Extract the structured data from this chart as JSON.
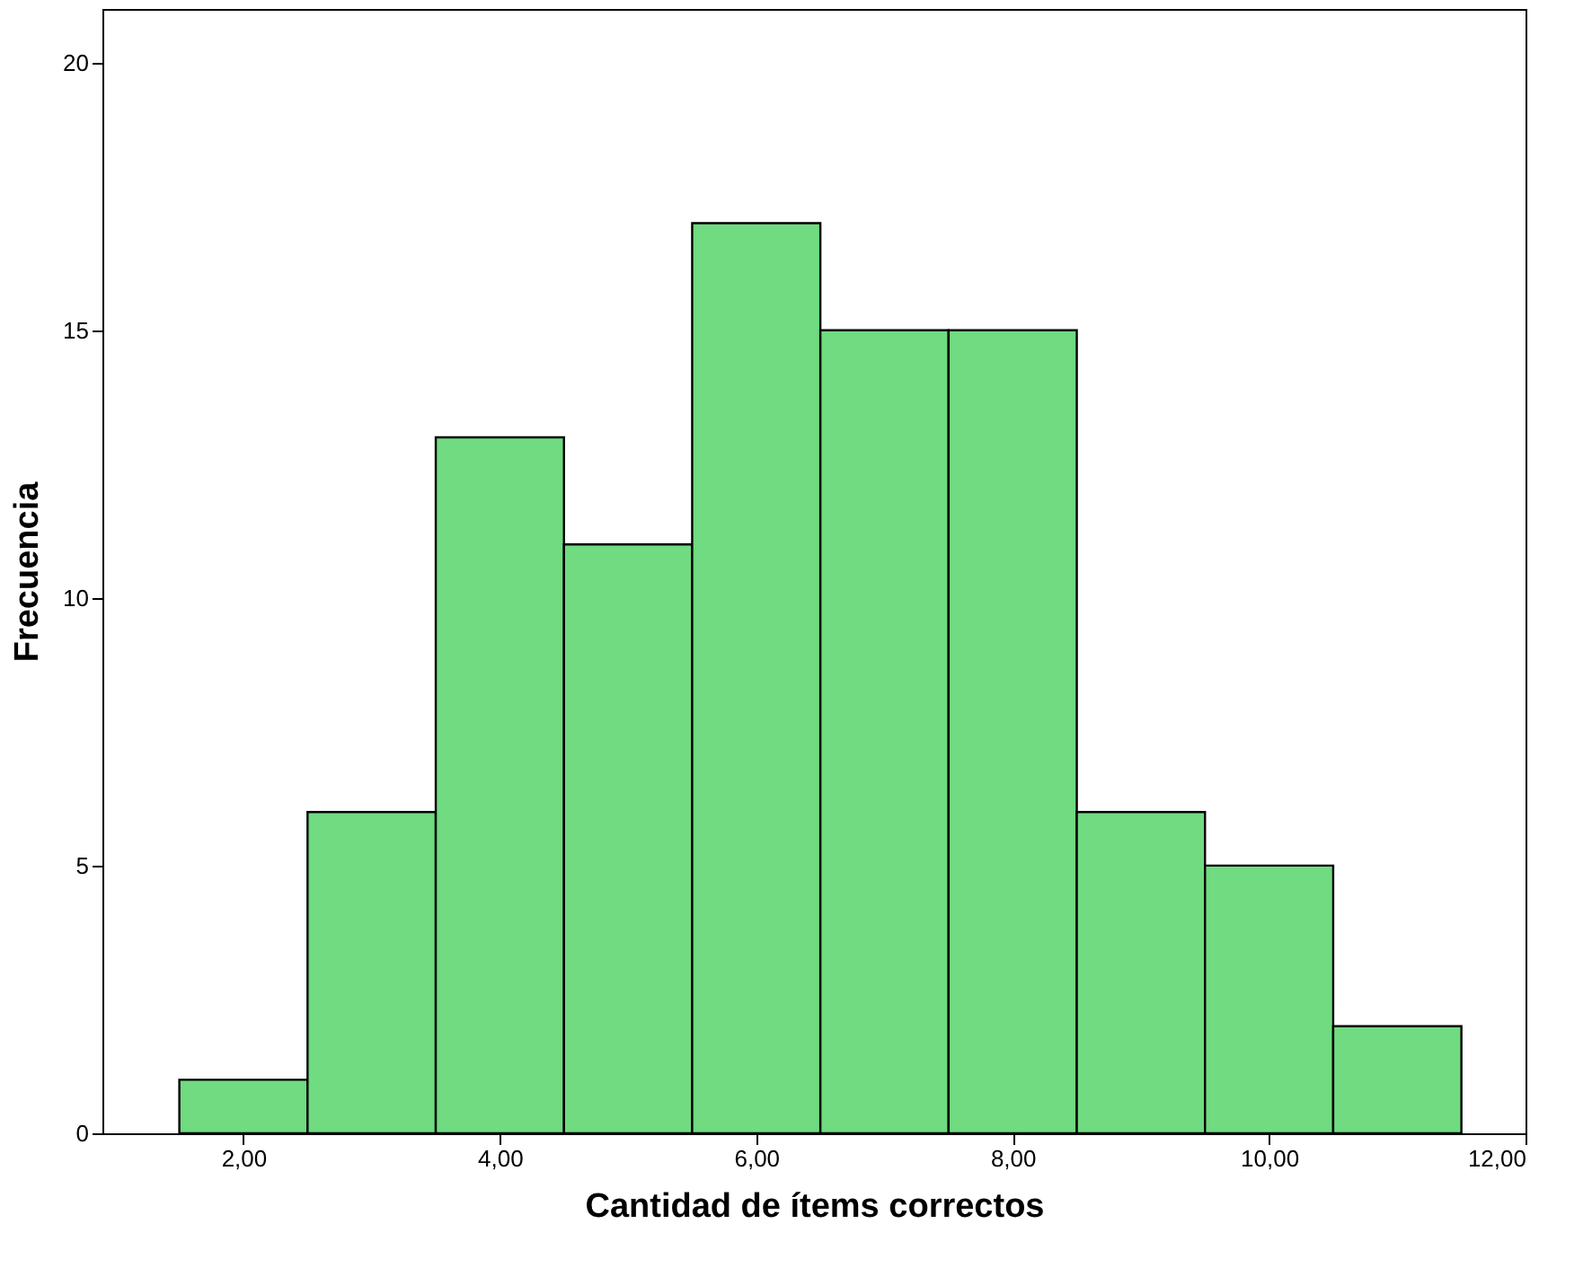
{
  "chart_data": {
    "type": "histogram",
    "xlabel": "Cantidad de ítems correctos",
    "ylabel": "Frecuencia",
    "bins": [
      1.5,
      2.5,
      3.5,
      4.5,
      5.5,
      6.5,
      7.5,
      8.5,
      9.5,
      10.5,
      11.5
    ],
    "values": [
      1,
      6,
      13,
      11,
      17,
      15,
      15,
      6,
      5,
      2
    ],
    "color": "#70db80",
    "xlim": [
      0.9,
      12.0
    ],
    "xticks": [
      {
        "value": 2,
        "label": "2,00"
      },
      {
        "value": 4,
        "label": "4,00"
      },
      {
        "value": 6,
        "label": "6,00"
      },
      {
        "value": 8,
        "label": "8,00"
      },
      {
        "value": 10,
        "label": "10,00"
      },
      {
        "value": 12,
        "label": "12,00"
      }
    ],
    "ylim": [
      0,
      21
    ],
    "yticks": [
      0,
      5,
      10,
      15,
      20
    ],
    "grid": false
  }
}
